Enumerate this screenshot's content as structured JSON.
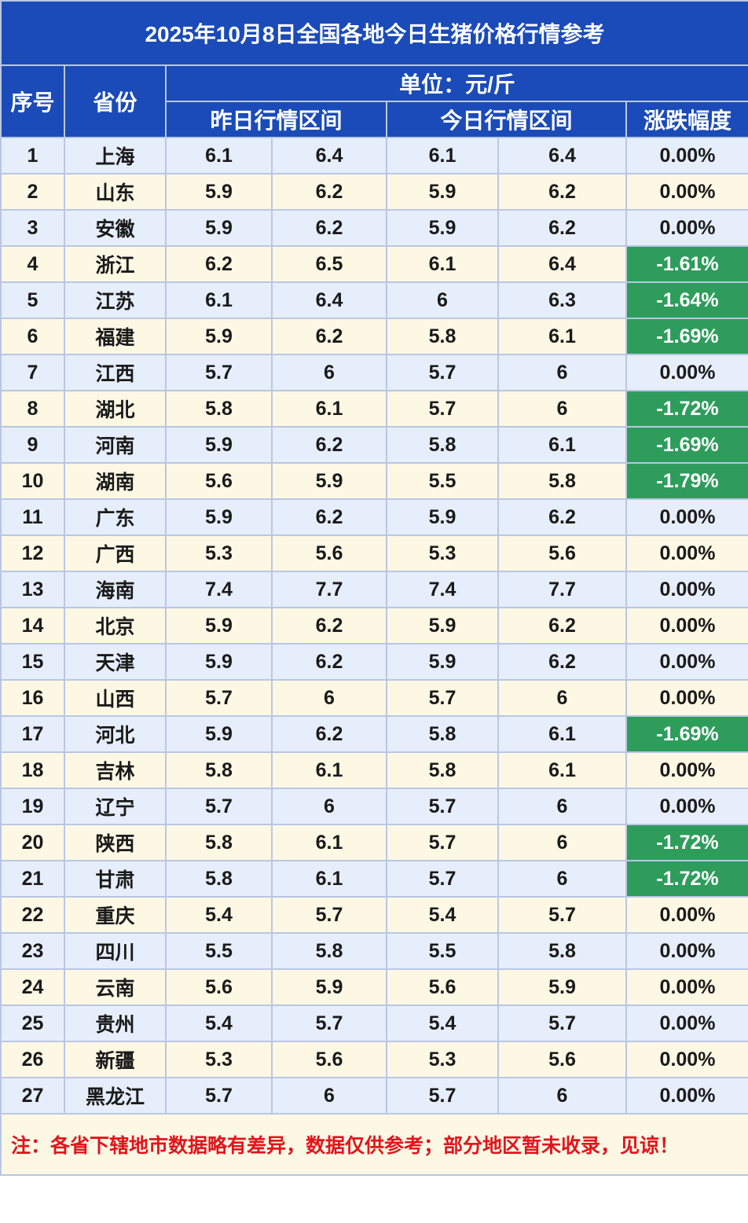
{
  "title": "2025年10月8日全国各地今日生猪价格行情参考",
  "headers": {
    "index": "序号",
    "province": "省份",
    "unit": "单位：元/斤",
    "yesterday_range": "昨日行情区间",
    "today_range": "今日行情区间",
    "change": "涨跌幅度"
  },
  "rows": [
    {
      "no": "1",
      "province": "上海",
      "y_low": "6.1",
      "y_high": "6.4",
      "t_low": "6.1",
      "t_high": "6.4",
      "change": "0.00%"
    },
    {
      "no": "2",
      "province": "山东",
      "y_low": "5.9",
      "y_high": "6.2",
      "t_low": "5.9",
      "t_high": "6.2",
      "change": "0.00%"
    },
    {
      "no": "3",
      "province": "安徽",
      "y_low": "5.9",
      "y_high": "6.2",
      "t_low": "5.9",
      "t_high": "6.2",
      "change": "0.00%"
    },
    {
      "no": "4",
      "province": "浙江",
      "y_low": "6.2",
      "y_high": "6.5",
      "t_low": "6.1",
      "t_high": "6.4",
      "change": "-1.61%"
    },
    {
      "no": "5",
      "province": "江苏",
      "y_low": "6.1",
      "y_high": "6.4",
      "t_low": "6",
      "t_high": "6.3",
      "change": "-1.64%"
    },
    {
      "no": "6",
      "province": "福建",
      "y_low": "5.9",
      "y_high": "6.2",
      "t_low": "5.8",
      "t_high": "6.1",
      "change": "-1.69%"
    },
    {
      "no": "7",
      "province": "江西",
      "y_low": "5.7",
      "y_high": "6",
      "t_low": "5.7",
      "t_high": "6",
      "change": "0.00%"
    },
    {
      "no": "8",
      "province": "湖北",
      "y_low": "5.8",
      "y_high": "6.1",
      "t_low": "5.7",
      "t_high": "6",
      "change": "-1.72%"
    },
    {
      "no": "9",
      "province": "河南",
      "y_low": "5.9",
      "y_high": "6.2",
      "t_low": "5.8",
      "t_high": "6.1",
      "change": "-1.69%"
    },
    {
      "no": "10",
      "province": "湖南",
      "y_low": "5.6",
      "y_high": "5.9",
      "t_low": "5.5",
      "t_high": "5.8",
      "change": "-1.79%"
    },
    {
      "no": "11",
      "province": "广东",
      "y_low": "5.9",
      "y_high": "6.2",
      "t_low": "5.9",
      "t_high": "6.2",
      "change": "0.00%"
    },
    {
      "no": "12",
      "province": "广西",
      "y_low": "5.3",
      "y_high": "5.6",
      "t_low": "5.3",
      "t_high": "5.6",
      "change": "0.00%"
    },
    {
      "no": "13",
      "province": "海南",
      "y_low": "7.4",
      "y_high": "7.7",
      "t_low": "7.4",
      "t_high": "7.7",
      "change": "0.00%"
    },
    {
      "no": "14",
      "province": "北京",
      "y_low": "5.9",
      "y_high": "6.2",
      "t_low": "5.9",
      "t_high": "6.2",
      "change": "0.00%"
    },
    {
      "no": "15",
      "province": "天津",
      "y_low": "5.9",
      "y_high": "6.2",
      "t_low": "5.9",
      "t_high": "6.2",
      "change": "0.00%"
    },
    {
      "no": "16",
      "province": "山西",
      "y_low": "5.7",
      "y_high": "6",
      "t_low": "5.7",
      "t_high": "6",
      "change": "0.00%"
    },
    {
      "no": "17",
      "province": "河北",
      "y_low": "5.9",
      "y_high": "6.2",
      "t_low": "5.8",
      "t_high": "6.1",
      "change": "-1.69%"
    },
    {
      "no": "18",
      "province": "吉林",
      "y_low": "5.8",
      "y_high": "6.1",
      "t_low": "5.8",
      "t_high": "6.1",
      "change": "0.00%"
    },
    {
      "no": "19",
      "province": "辽宁",
      "y_low": "5.7",
      "y_high": "6",
      "t_low": "5.7",
      "t_high": "6",
      "change": "0.00%"
    },
    {
      "no": "20",
      "province": "陕西",
      "y_low": "5.8",
      "y_high": "6.1",
      "t_low": "5.7",
      "t_high": "6",
      "change": "-1.72%"
    },
    {
      "no": "21",
      "province": "甘肃",
      "y_low": "5.8",
      "y_high": "6.1",
      "t_low": "5.7",
      "t_high": "6",
      "change": "-1.72%"
    },
    {
      "no": "22",
      "province": "重庆",
      "y_low": "5.4",
      "y_high": "5.7",
      "t_low": "5.4",
      "t_high": "5.7",
      "change": "0.00%"
    },
    {
      "no": "23",
      "province": "四川",
      "y_low": "5.5",
      "y_high": "5.8",
      "t_low": "5.5",
      "t_high": "5.8",
      "change": "0.00%"
    },
    {
      "no": "24",
      "province": "云南",
      "y_low": "5.6",
      "y_high": "5.9",
      "t_low": "5.6",
      "t_high": "5.9",
      "change": "0.00%"
    },
    {
      "no": "25",
      "province": "贵州",
      "y_low": "5.4",
      "y_high": "5.7",
      "t_low": "5.4",
      "t_high": "5.7",
      "change": "0.00%"
    },
    {
      "no": "26",
      "province": "新疆",
      "y_low": "5.3",
      "y_high": "5.6",
      "t_low": "5.3",
      "t_high": "5.6",
      "change": "0.00%"
    },
    {
      "no": "27",
      "province": "黑龙江",
      "y_low": "5.7",
      "y_high": "6",
      "t_low": "5.7",
      "t_high": "6",
      "change": "0.00%"
    }
  ],
  "note": "注：各省下辖地市数据略有差异，数据仅供参考；部分地区暂未收录，见谅！",
  "colors": {
    "header_blue": "#1a4bb8",
    "row_blue": "#e6eefb",
    "row_cream": "#fdf8e4",
    "decline_green": "#2e9d5c",
    "note_red": "#e1151d"
  }
}
